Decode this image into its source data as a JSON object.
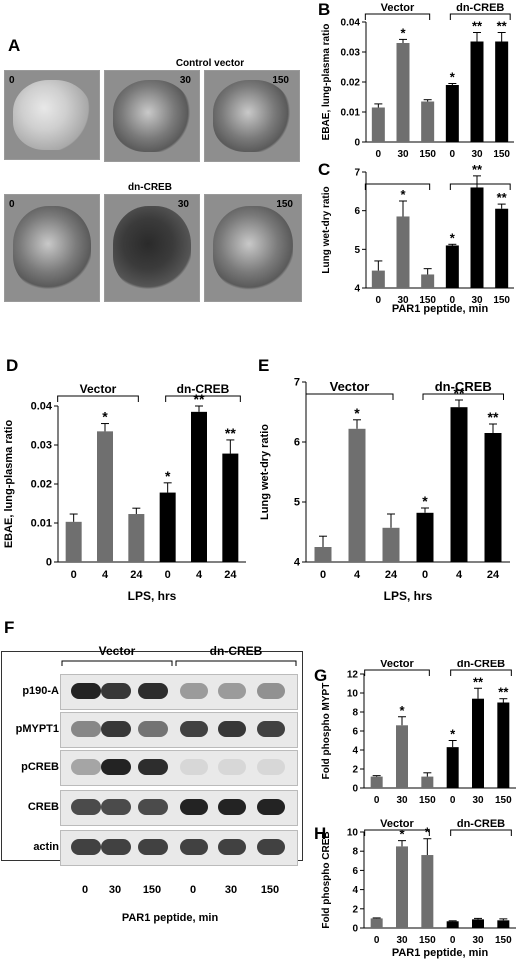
{
  "panels": {
    "A": "A",
    "B": "B",
    "C": "C",
    "D": "D",
    "E": "E",
    "F": "F",
    "G": "G",
    "H": "H"
  },
  "panel_a": {
    "row1_title": "Control vector",
    "row2_title": "dn-CREB",
    "row1_times": [
      "0",
      "30",
      "150"
    ],
    "row2_times": [
      "0",
      "30",
      "150"
    ]
  },
  "chart_data": [
    {
      "id": "B",
      "type": "bar",
      "groups": [
        "Vector",
        "dn-CREB"
      ],
      "categories": [
        "0",
        "30",
        "150",
        "0",
        "30",
        "150"
      ],
      "values": [
        0.0115,
        0.033,
        0.0135,
        0.019,
        0.0335,
        0.0335
      ],
      "errors": [
        0.0012,
        0.0012,
        0.0006,
        0.0005,
        0.003,
        0.003
      ],
      "marks": [
        "",
        "*",
        "",
        "*",
        "**",
        "**"
      ],
      "series_colors": [
        "#6f6f6f",
        "#6f6f6f",
        "#6f6f6f",
        "#000000",
        "#000000",
        "#000000"
      ],
      "ylabel": "EBAE, lung-plasma ratio",
      "yticks": [
        "0",
        "0.01",
        "0.02",
        "0.03",
        "0.04"
      ],
      "ylim": [
        0,
        0.04
      ]
    },
    {
      "id": "C",
      "type": "bar",
      "categories": [
        "0",
        "30",
        "150",
        "0",
        "30",
        "150"
      ],
      "values": [
        4.45,
        5.85,
        4.35,
        5.1,
        6.6,
        6.05
      ],
      "errors": [
        0.25,
        0.4,
        0.15,
        0.03,
        0.3,
        0.12
      ],
      "marks": [
        "",
        "*",
        "",
        "*",
        "**",
        "**"
      ],
      "series_colors": [
        "#6f6f6f",
        "#6f6f6f",
        "#6f6f6f",
        "#000000",
        "#000000",
        "#000000"
      ],
      "ylabel": "Lung wet-dry ratio",
      "xlabel": "PAR1 peptide, min",
      "yticks": [
        "4",
        "5",
        "6",
        "7"
      ],
      "ylim": [
        4,
        7
      ]
    },
    {
      "id": "D",
      "type": "bar",
      "groups": [
        "Vector",
        "dn-CREB"
      ],
      "categories": [
        "0",
        "4",
        "24",
        "0",
        "4",
        "24"
      ],
      "values": [
        0.0103,
        0.0335,
        0.0123,
        0.0178,
        0.0385,
        0.0278
      ],
      "errors": [
        0.002,
        0.002,
        0.0015,
        0.0025,
        0.0015,
        0.0035
      ],
      "marks": [
        "",
        "*",
        "",
        "*",
        "**",
        "**"
      ],
      "series_colors": [
        "#6f6f6f",
        "#6f6f6f",
        "#6f6f6f",
        "#000000",
        "#000000",
        "#000000"
      ],
      "ylabel": "EBAE, lung-plasma ratio",
      "xlabel": "LPS, hrs",
      "yticks": [
        "0",
        "0.01",
        "0.02",
        "0.03",
        "0.04"
      ],
      "ylim": [
        0,
        0.04
      ]
    },
    {
      "id": "E",
      "type": "bar",
      "groups": [
        "Vector",
        "dn-CREB"
      ],
      "categories": [
        "0",
        "4",
        "24",
        "0",
        "4",
        "24"
      ],
      "values": [
        4.25,
        6.22,
        4.57,
        4.82,
        6.58,
        6.15
      ],
      "errors": [
        0.18,
        0.15,
        0.23,
        0.08,
        0.12,
        0.15
      ],
      "marks": [
        "",
        "*",
        "",
        "*",
        "**",
        "**"
      ],
      "series_colors": [
        "#6f6f6f",
        "#6f6f6f",
        "#6f6f6f",
        "#000000",
        "#000000",
        "#000000"
      ],
      "ylabel": "Lung wet-dry ratio",
      "xlabel": "LPS, hrs",
      "yticks": [
        "4",
        "5",
        "6",
        "7"
      ],
      "ylim": [
        4,
        7
      ]
    },
    {
      "id": "G",
      "type": "bar",
      "groups": [
        "Vector",
        "dn-CREB"
      ],
      "categories": [
        "0",
        "30",
        "150",
        "0",
        "30",
        "150"
      ],
      "values": [
        1.2,
        6.6,
        1.2,
        4.3,
        9.4,
        9.0
      ],
      "errors": [
        0.1,
        0.9,
        0.4,
        0.7,
        1.1,
        0.4
      ],
      "marks": [
        "",
        "*",
        "",
        "*",
        "**",
        "**"
      ],
      "series_colors": [
        "#6f6f6f",
        "#6f6f6f",
        "#6f6f6f",
        "#000000",
        "#000000",
        "#000000"
      ],
      "ylabel": "Fold phospho MYPT",
      "yticks": [
        "0",
        "2",
        "4",
        "6",
        "8",
        "10",
        "12"
      ],
      "ylim": [
        0,
        12
      ]
    },
    {
      "id": "H",
      "type": "bar",
      "groups": [
        "Vector",
        "dn-CREB"
      ],
      "categories": [
        "0",
        "30",
        "150",
        "0",
        "30",
        "150"
      ],
      "values": [
        1.0,
        8.5,
        7.6,
        0.7,
        0.9,
        0.8
      ],
      "errors": [
        0.05,
        0.6,
        1.7,
        0.05,
        0.1,
        0.15
      ],
      "marks": [
        "",
        "*",
        "*",
        "",
        "",
        ""
      ],
      "series_colors": [
        "#6f6f6f",
        "#6f6f6f",
        "#6f6f6f",
        "#000000",
        "#000000",
        "#000000"
      ],
      "ylabel": "Fold phospho CREB",
      "xlabel": "PAR1 peptide, min",
      "yticks": [
        "0",
        "2",
        "4",
        "6",
        "8",
        "10"
      ],
      "ylim": [
        0,
        10
      ]
    }
  ],
  "blot": {
    "group_vector": "Vector",
    "group_dn": "dn-CREB",
    "rows": [
      "p190-A",
      "pMYPT1",
      "pCREB",
      "CREB",
      "actin"
    ],
    "lanes": [
      "0",
      "30",
      "150",
      "0",
      "30",
      "150"
    ],
    "xlabel": "PAR1 peptide, min",
    "intensities": [
      [
        0.95,
        0.85,
        0.9,
        0.35,
        0.35,
        0.4
      ],
      [
        0.45,
        0.85,
        0.55,
        0.8,
        0.85,
        0.8
      ],
      [
        0.3,
        0.95,
        0.9,
        0.05,
        0.05,
        0.05
      ],
      [
        0.75,
        0.75,
        0.75,
        0.95,
        0.95,
        0.95
      ],
      [
        0.8,
        0.8,
        0.8,
        0.8,
        0.8,
        0.8
      ]
    ]
  }
}
